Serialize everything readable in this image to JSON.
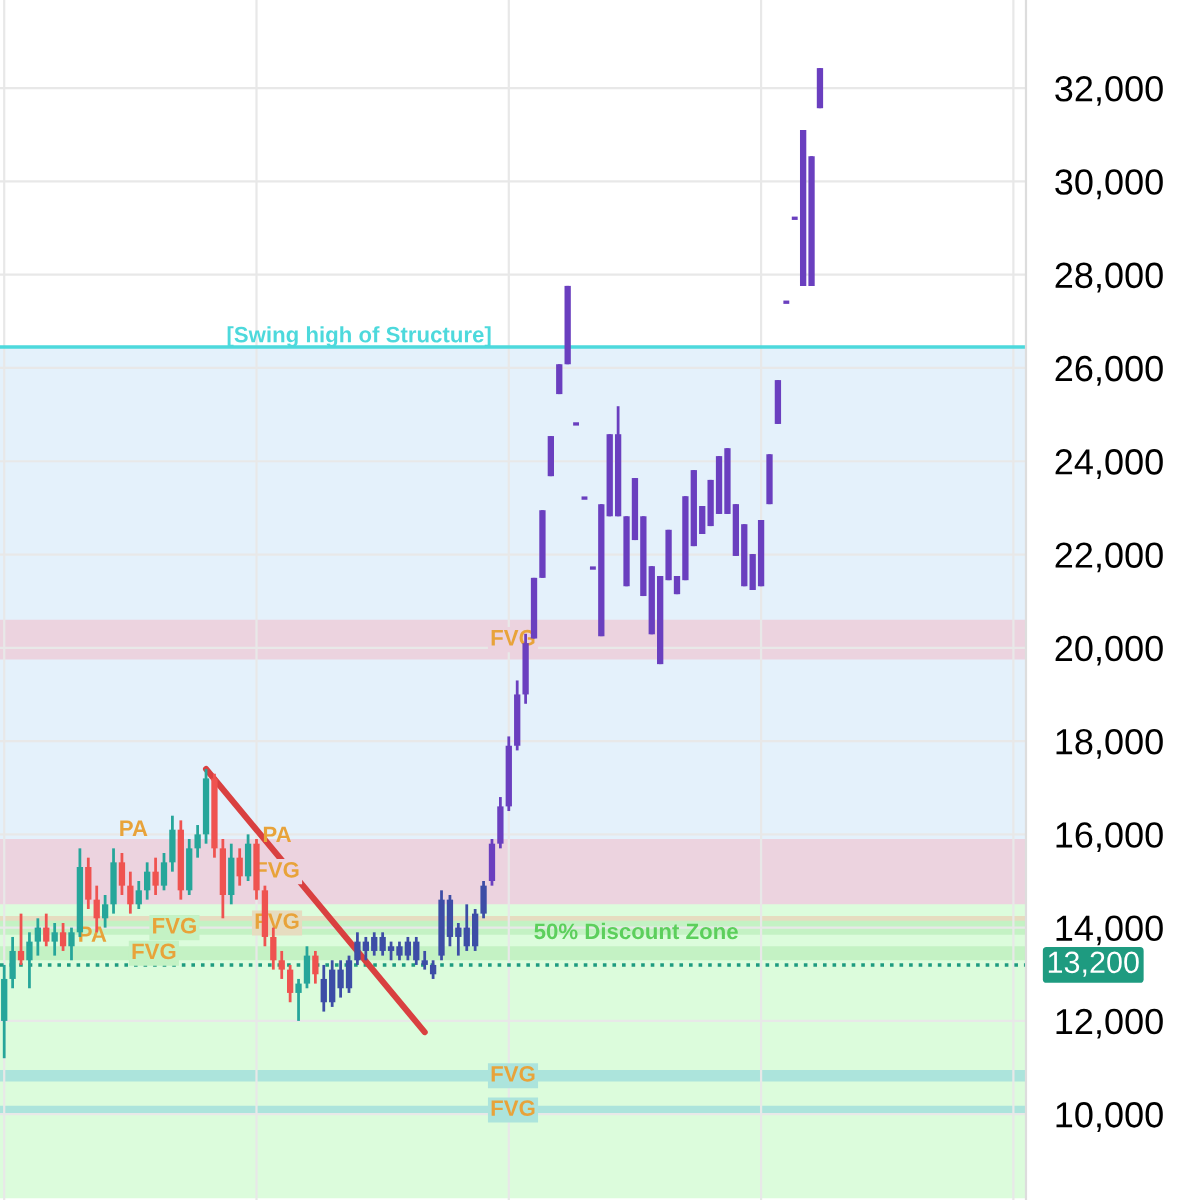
{
  "chart_data": {
    "type": "candlestick",
    "ylim": [
      8160,
      33890
    ],
    "yticks": [
      {
        "value": 10000,
        "label": "10,000"
      },
      {
        "value": 12000,
        "label": "12,000"
      },
      {
        "value": 14000,
        "label": "14,000"
      },
      {
        "value": 16000,
        "label": "16,000"
      },
      {
        "value": 18000,
        "label": "18,000"
      },
      {
        "value": 20000,
        "label": "20,000"
      },
      {
        "value": 22000,
        "label": "22,000"
      },
      {
        "value": 24000,
        "label": "24,000"
      },
      {
        "value": 26000,
        "label": "26,000"
      },
      {
        "value": 28000,
        "label": "28,000"
      },
      {
        "value": 30000,
        "label": "30,000"
      },
      {
        "value": 32000,
        "label": "32,000"
      }
    ],
    "grid": true,
    "categories": [
      null,
      null,
      null,
      null,
      null,
      null,
      null,
      null,
      null,
      null,
      null,
      null,
      null,
      null,
      null,
      null,
      null,
      null,
      null,
      null,
      null,
      null,
      null,
      null,
      null,
      null,
      null,
      null,
      null,
      null,
      null,
      null,
      null,
      null,
      null,
      null,
      null,
      null,
      null,
      null,
      null,
      null,
      null,
      null,
      null,
      null,
      null,
      null,
      null,
      null,
      null,
      null,
      null,
      null,
      null,
      null,
      null,
      null,
      null,
      null,
      null,
      null,
      null,
      null,
      null,
      null,
      null,
      null,
      null,
      null,
      null,
      null,
      null,
      null,
      null,
      null,
      null,
      null,
      null,
      null,
      null,
      null,
      null,
      null,
      null,
      null,
      null,
      null,
      null,
      null,
      null,
      null,
      null,
      null,
      null,
      null,
      null,
      null,
      null,
      null,
      null,
      null,
      null,
      null,
      null,
      null,
      null,
      null,
      null,
      null,
      null,
      null,
      null,
      null,
      null,
      null,
      null,
      null,
      null,
      null,
      null,
      null
    ],
    "ohlc": [
      [
        12000,
        13200,
        11200,
        12900
      ],
      [
        12900,
        13800,
        12700,
        13500
      ],
      [
        13500,
        14300,
        13200,
        13300
      ],
      [
        13300,
        13900,
        12700,
        13700
      ],
      [
        13700,
        14200,
        13400,
        14000
      ],
      [
        14000,
        14300,
        13600,
        13700
      ],
      [
        13700,
        14100,
        13400,
        13900
      ],
      [
        13900,
        14100,
        13500,
        13600
      ],
      [
        13600,
        14000,
        13300,
        13900
      ],
      [
        13900,
        15700,
        13800,
        15300
      ],
      [
        15300,
        15500,
        14400,
        14600
      ],
      [
        14600,
        14900,
        13900,
        14200
      ],
      [
        14200,
        14700,
        14000,
        14500
      ],
      [
        14500,
        15700,
        14300,
        15400
      ],
      [
        15400,
        15600,
        14700,
        14900
      ],
      [
        14900,
        15200,
        14300,
        14500
      ],
      [
        14500,
        15000,
        14400,
        14800
      ],
      [
        14800,
        15400,
        14600,
        15200
      ],
      [
        15200,
        15500,
        14700,
        14900
      ],
      [
        14900,
        15600,
        14800,
        15400
      ],
      [
        15400,
        16400,
        15200,
        16100
      ],
      [
        16100,
        16300,
        14600,
        14800
      ],
      [
        14800,
        15900,
        14700,
        15700
      ],
      [
        15700,
        16200,
        15500,
        16000
      ],
      [
        16000,
        17400,
        15800,
        17200
      ],
      [
        17200,
        17300,
        15500,
        15700
      ],
      [
        15700,
        15900,
        14200,
        14700
      ],
      [
        14700,
        15800,
        14500,
        15500
      ],
      [
        15500,
        15700,
        14900,
        15100
      ],
      [
        15100,
        16000,
        15000,
        15800
      ],
      [
        15800,
        15900,
        14600,
        14800
      ],
      [
        14800,
        14900,
        13600,
        13800
      ],
      [
        13800,
        14000,
        13100,
        13300
      ],
      [
        13300,
        13500,
        12900,
        13100
      ],
      [
        13100,
        13200,
        12400,
        12600
      ],
      [
        12600,
        12900,
        12000,
        12800
      ],
      [
        12800,
        13600,
        12700,
        13400
      ],
      [
        13400,
        13500,
        12800,
        13000
      ],
      [
        12900,
        13200,
        12200,
        12400
      ],
      [
        12400,
        13300,
        12300,
        13100
      ],
      [
        13100,
        13300,
        12500,
        12700
      ],
      [
        12700,
        13400,
        12600,
        13300
      ],
      [
        13300,
        13900,
        13200,
        13700
      ],
      [
        13700,
        13800,
        13300,
        13500
      ],
      [
        13500,
        13900,
        13400,
        13800
      ],
      [
        13800,
        13900,
        13400,
        13500
      ],
      [
        13500,
        13700,
        13300,
        13600
      ],
      [
        13600,
        13700,
        13300,
        13400
      ],
      [
        13400,
        13800,
        13300,
        13700
      ],
      [
        13700,
        13800,
        13200,
        13300
      ],
      [
        13300,
        13500,
        13100,
        13200
      ],
      [
        13200,
        13300,
        12900,
        13000
      ],
      [
        13400,
        14800,
        13300,
        14600
      ],
      [
        14600,
        14700,
        13600,
        13800
      ],
      [
        13800,
        14100,
        13400,
        14000
      ],
      [
        14000,
        14500,
        13500,
        13600
      ],
      [
        13600,
        14400,
        13500,
        14300
      ],
      [
        14300,
        15000,
        14200,
        14900
      ],
      [
        15000,
        15900,
        14900,
        15800
      ],
      [
        15800,
        16800,
        15700,
        16600
      ],
      [
        16600,
        18100,
        16500,
        17900
      ],
      [
        17900,
        19300,
        17800,
        19000
      ],
      [
        19000,
        20300,
        18800,
        20100
      ],
      [
        20200,
        21500,
        20200,
        21500
      ],
      [
        21500,
        22950,
        21500,
        22950
      ],
      [
        23680,
        24540,
        23680,
        24540
      ],
      [
        25440,
        26080,
        25440,
        26080
      ],
      [
        26080,
        27760,
        26080,
        27760
      ],
      [
        24800,
        24800,
        24800,
        24800
      ],
      [
        23210,
        23210,
        23210,
        23210
      ],
      [
        21710,
        21710,
        21710,
        21710
      ],
      [
        20250,
        23080,
        20250,
        23080
      ],
      [
        22820,
        24580,
        22820,
        24580
      ],
      [
        22820,
        25180,
        22820,
        24580
      ],
      [
        21320,
        22820,
        21320,
        22820
      ],
      [
        22310,
        23640,
        22310,
        23640
      ],
      [
        21110,
        22820,
        21110,
        22820
      ],
      [
        20290,
        21750,
        20290,
        21750
      ],
      [
        19650,
        21540,
        19650,
        21540
      ],
      [
        21450,
        22530,
        21450,
        22530
      ],
      [
        21150,
        21540,
        21150,
        21540
      ],
      [
        21450,
        23250,
        21450,
        23250
      ],
      [
        22180,
        23810,
        22180,
        23810
      ],
      [
        22440,
        23040,
        22440,
        23040
      ],
      [
        22610,
        23600,
        22610,
        23600
      ],
      [
        22870,
        24110,
        22870,
        24110
      ],
      [
        22870,
        24280,
        22870,
        24280
      ],
      [
        21970,
        23080,
        21970,
        23080
      ],
      [
        21320,
        22650,
        21320,
        22650
      ],
      [
        21240,
        22010,
        21240,
        22010
      ],
      [
        21320,
        22740,
        21320,
        22740
      ],
      [
        23080,
        24150,
        23080,
        24150
      ],
      [
        24800,
        25740,
        24800,
        25740
      ],
      [
        27410,
        27410,
        27410,
        27410
      ],
      [
        29210,
        29210,
        29210,
        29210
      ],
      [
        27760,
        31100,
        27760,
        31100
      ],
      [
        27760,
        30540,
        27760,
        30540
      ],
      [
        31570,
        32430,
        31570,
        32430
      ],
      null,
      null,
      null,
      null,
      null,
      null,
      null,
      null,
      null,
      null,
      null,
      null,
      null,
      null,
      null,
      null,
      null,
      null,
      null,
      null,
      null,
      null,
      null,
      null
    ],
    "colors": [
      "#26a69a",
      "#26a69a",
      "#ef5350",
      "#26a69a",
      "#26a69a",
      "#ef5350",
      "#26a69a",
      "#ef5350",
      "#26a69a",
      "#26a69a",
      "#ef5350",
      "#ef5350",
      "#26a69a",
      "#26a69a",
      "#ef5350",
      "#ef5350",
      "#26a69a",
      "#26a69a",
      "#ef5350",
      "#26a69a",
      "#26a69a",
      "#ef5350",
      "#26a69a",
      "#26a69a",
      "#26a69a",
      "#ef5350",
      "#ef5350",
      "#26a69a",
      "#ef5350",
      "#26a69a",
      "#ef5350",
      "#ef5350",
      "#ef5350",
      "#ef5350",
      "#ef5350",
      "#26a69a",
      "#26a69a",
      "#ef5350",
      "#3d4da6",
      "#3d4da6",
      "#3d4da6",
      "#3d4da6",
      "#3d4da6",
      "#3d4da6",
      "#3d4da6",
      "#3d4da6",
      "#3d4da6",
      "#3d4da6",
      "#3d4da6",
      "#3d4da6",
      "#3d4da6",
      "#3d4da6",
      "#3d4da6",
      "#3d4da6",
      "#3d4da6",
      "#3d4da6",
      "#3d4da6",
      "#3d4da6",
      "#6a3fbf",
      "#6a3fbf",
      "#6a3fbf",
      "#6a3fbf",
      "#6a3fbf",
      "#6a3fbf",
      "#6a3fbf",
      "#6a3fbf",
      "#6a3fbf",
      "#6a3fbf",
      "#6a3fbf",
      "#6a3fbf",
      "#6a3fbf",
      "#6a3fbf",
      "#6a3fbf",
      "#6a3fbf",
      "#6a3fbf",
      "#6a3fbf",
      "#6a3fbf",
      "#6a3fbf",
      "#6a3fbf",
      "#6a3fbf",
      "#6a3fbf",
      "#6a3fbf",
      "#6a3fbf",
      "#6a3fbf",
      "#6a3fbf",
      "#6a3fbf",
      "#6a3fbf",
      "#6a3fbf",
      "#6a3fbf",
      "#6a3fbf",
      "#6a3fbf",
      "#6a3fbf",
      "#6a3fbf",
      "#6a3fbf",
      "#6a3fbf",
      "#6a3fbf",
      "#6a3fbf",
      "#6a3fbf",
      null,
      null,
      null,
      null,
      null,
      null,
      null,
      null,
      null,
      null,
      null,
      null,
      null,
      null,
      null,
      null,
      null,
      null,
      null,
      null,
      null,
      null,
      null,
      null
    ],
    "series": [
      {
        "type": "line",
        "color": "#d94040",
        "values": [
          null,
          null,
          null,
          null,
          null,
          null,
          null,
          null,
          null,
          null,
          null,
          null,
          null,
          null,
          null,
          null,
          null,
          null,
          null,
          null,
          null,
          null,
          null,
          null,
          17400,
          null,
          null,
          null,
          null,
          null,
          null,
          null,
          null,
          null,
          null,
          null,
          null,
          null,
          null,
          null,
          null,
          null,
          null,
          null,
          null,
          null,
          null,
          null,
          null,
          null,
          11760,
          null,
          null,
          null,
          null,
          null,
          null,
          null,
          null,
          null,
          null,
          null,
          null,
          null,
          null,
          null,
          null,
          null,
          null,
          null,
          null,
          null,
          null,
          null,
          null,
          null,
          null,
          null,
          null,
          null,
          null,
          null,
          null,
          null,
          null,
          null,
          null,
          null,
          null,
          null,
          null,
          null,
          null,
          null,
          null,
          null,
          null,
          null,
          null,
          null,
          null,
          null,
          null,
          null,
          null,
          null,
          null,
          null,
          null,
          null,
          null,
          null,
          null,
          null,
          null,
          null,
          null,
          null,
          null,
          null,
          null,
          null
        ]
      }
    ],
    "ref_lines": [
      {
        "axis": "y",
        "value": 26450,
        "label": "[Swing high of Structure]",
        "color": "#4dd9dc",
        "line_style": "solid"
      },
      {
        "axis": "y",
        "value": 13200,
        "label": "13,200",
        "color": "#1e9b80",
        "line_style": "dotted"
      }
    ],
    "bands": [
      {
        "axis": "y",
        "from": 14600,
        "to": 26450,
        "color": "#e4f1fb"
      },
      {
        "axis": "y",
        "from": 8200,
        "to": 14600,
        "color": "#dcfcdc"
      },
      {
        "axis": "y",
        "from": 19750,
        "to": 20600,
        "color": "#ecd3df",
        "label": "FVG"
      },
      {
        "axis": "y",
        "from": 14500,
        "to": 15900,
        "color": "#ecd3df",
        "label": "FVG"
      },
      {
        "axis": "y",
        "from": 13950,
        "to": 14250,
        "color": "#e6dcc0",
        "label": "FVG"
      },
      {
        "axis": "y",
        "from": 13850,
        "to": 14150,
        "color": "#c4f2c4",
        "label": "FVG"
      },
      {
        "axis": "y",
        "from": 13300,
        "to": 13600,
        "color": "#c4f2c4",
        "label": "FVG"
      },
      {
        "axis": "y",
        "from": 10700,
        "to": 10950,
        "color": "#ace4dc",
        "label": "FVG"
      },
      {
        "axis": "y",
        "from": 10000,
        "to": 10180,
        "color": "#ace4dc",
        "label": "FVG"
      }
    ],
    "annotations": [
      {
        "text": "PA",
        "y": 13820
      },
      {
        "text": "PA",
        "y": 16090
      },
      {
        "text": "PA",
        "y": 15960
      },
      {
        "text": "50% Discount Zone",
        "y": 13880
      }
    ]
  }
}
